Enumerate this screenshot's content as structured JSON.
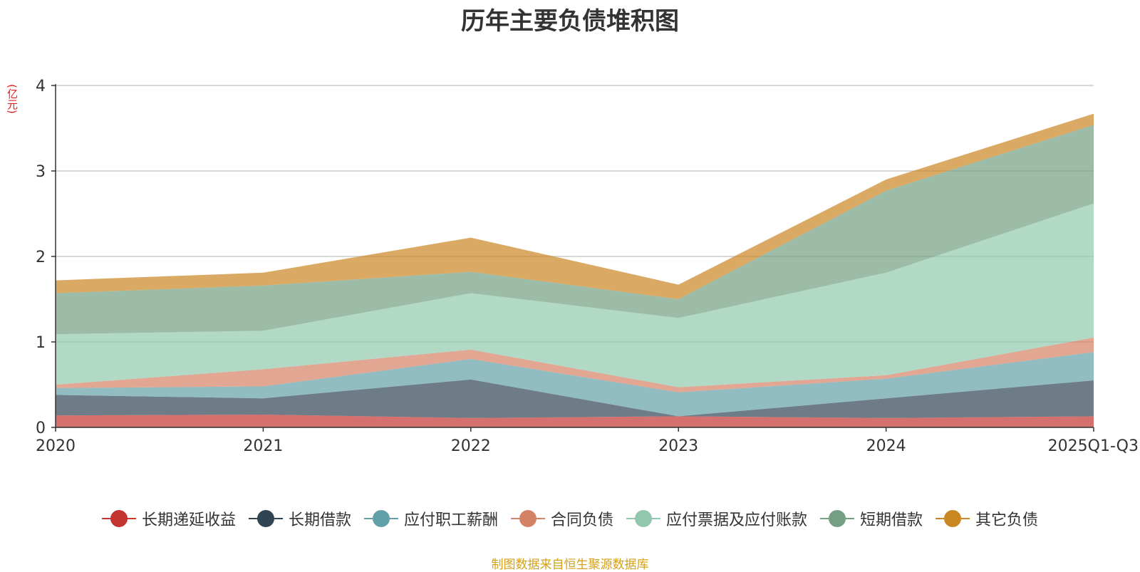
{
  "chart_data": {
    "type": "area",
    "stacked": true,
    "title": "历年主要负债堆积图",
    "unit_label": "(亿元)",
    "categories": [
      "2020",
      "2021",
      "2022",
      "2023",
      "2024",
      "2025Q1-Q3"
    ],
    "ylim": [
      0,
      4
    ],
    "yticks": [
      "0",
      "1",
      "2",
      "3",
      "4"
    ],
    "grid": true,
    "legend_position": "bottom",
    "series": [
      {
        "name": "长期递延收益",
        "color": "#c23531",
        "values": [
          0.14,
          0.15,
          0.11,
          0.13,
          0.11,
          0.13
        ]
      },
      {
        "name": "长期借款",
        "color": "#2f4554",
        "values": [
          0.24,
          0.19,
          0.45,
          0.0,
          0.23,
          0.42
        ]
      },
      {
        "name": "应付职工薪酬",
        "color": "#61a0a8",
        "values": [
          0.08,
          0.14,
          0.24,
          0.28,
          0.23,
          0.33
        ]
      },
      {
        "name": "合同负债",
        "color": "#d48265",
        "values": [
          0.04,
          0.2,
          0.11,
          0.06,
          0.04,
          0.17
        ]
      },
      {
        "name": "应付票据及应付账款",
        "color": "#91c7ae",
        "values": [
          0.59,
          0.45,
          0.66,
          0.81,
          1.2,
          1.57
        ]
      },
      {
        "name": "短期借款",
        "color": "#749f83",
        "values": [
          0.48,
          0.53,
          0.25,
          0.22,
          0.96,
          0.92
        ]
      },
      {
        "name": "其它负债",
        "color": "#ca8622",
        "values": [
          0.15,
          0.15,
          0.4,
          0.17,
          0.13,
          0.13
        ]
      }
    ]
  },
  "footer": {
    "source_note": "制图数据来自恒生聚源数据库"
  }
}
